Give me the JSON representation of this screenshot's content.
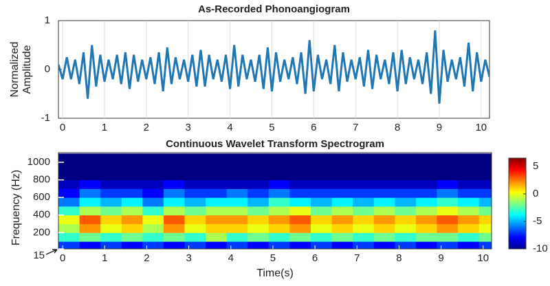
{
  "chart_data": [
    {
      "type": "line",
      "title": "As-Recorded Phonoangiogram",
      "ylabel": [
        "Normalized",
        "Amplitude"
      ],
      "color": "#1f77b4",
      "xlim": [
        -0.1,
        10.2
      ],
      "ylim": [
        -1,
        1
      ],
      "xticks": [
        0,
        1,
        2,
        3,
        4,
        5,
        6,
        7,
        8,
        9,
        10
      ],
      "yticks": [
        -1,
        0,
        1
      ],
      "grid": true,
      "x": [
        -0.1,
        0,
        0.1,
        0.2,
        0.3,
        0.4,
        0.5,
        0.6,
        0.7,
        0.8,
        0.9,
        1,
        1.1,
        1.2,
        1.3,
        1.4,
        1.5,
        1.6,
        1.7,
        1.8,
        1.9,
        2,
        2.1,
        2.2,
        2.3,
        2.4,
        2.5,
        2.6,
        2.7,
        2.8,
        2.9,
        3,
        3.1,
        3.2,
        3.3,
        3.4,
        3.5,
        3.6,
        3.7,
        3.8,
        3.9,
        4,
        4.1,
        4.2,
        4.3,
        4.4,
        4.5,
        4.6,
        4.7,
        4.8,
        4.9,
        5,
        5.1,
        5.2,
        5.3,
        5.4,
        5.5,
        5.6,
        5.7,
        5.8,
        5.9,
        6,
        6.1,
        6.2,
        6.3,
        6.4,
        6.5,
        6.6,
        6.7,
        6.8,
        6.9,
        7,
        7.1,
        7.2,
        7.3,
        7.4,
        7.5,
        7.6,
        7.7,
        7.8,
        7.9,
        8,
        8.1,
        8.2,
        8.3,
        8.4,
        8.5,
        8.6,
        8.7,
        8.8,
        8.9,
        9,
        9.1,
        9.2,
        9.3,
        9.4,
        9.5,
        9.6,
        9.7,
        9.8,
        9.9,
        10,
        10.1,
        10.2
      ],
      "values": [
        0.1,
        -0.2,
        0.25,
        -0.2,
        0.2,
        -0.3,
        0.35,
        -0.6,
        0.5,
        -0.35,
        0.3,
        -0.25,
        0.2,
        -0.2,
        0.3,
        -0.3,
        0.35,
        -0.4,
        0.3,
        -0.25,
        0.2,
        -0.2,
        0.25,
        -0.3,
        0.35,
        -0.45,
        0.45,
        -0.3,
        0.25,
        -0.2,
        0.2,
        -0.25,
        0.3,
        -0.35,
        0.4,
        -0.35,
        0.3,
        -0.2,
        0.2,
        -0.25,
        0.3,
        -0.4,
        0.5,
        -0.35,
        0.3,
        -0.2,
        0.2,
        -0.25,
        0.3,
        -0.4,
        0.45,
        -0.45,
        0.35,
        -0.25,
        0.2,
        -0.2,
        0.25,
        -0.3,
        0.35,
        -0.5,
        0.6,
        -0.45,
        0.3,
        -0.2,
        0.2,
        -0.3,
        0.5,
        -0.45,
        0.35,
        -0.25,
        0.2,
        -0.2,
        0.25,
        -0.35,
        0.4,
        -0.4,
        0.3,
        -0.2,
        0.2,
        -0.3,
        0.35,
        -0.45,
        0.4,
        -0.3,
        0.25,
        -0.2,
        0.2,
        -0.3,
        0.35,
        -0.5,
        0.8,
        -0.7,
        0.4,
        -0.25,
        0.2,
        -0.2,
        0.25,
        -0.35,
        0.55,
        -0.45,
        0.35,
        -0.25,
        0.2,
        -0.15
      ]
    },
    {
      "type": "heatmap",
      "title": "Continuous Wavelet Transform Spectrogram",
      "xlabel": "Time(s)",
      "ylabel": "Frequency (Hz)",
      "xlim": [
        -0.1,
        10.2
      ],
      "ylim": [
        15,
        1110
      ],
      "xticks": [
        0,
        1,
        2,
        3,
        4,
        5,
        6,
        7,
        8,
        9,
        10
      ],
      "yticks": [
        15,
        200,
        400,
        600,
        800,
        1000
      ],
      "clim": [
        -10,
        6.5
      ],
      "cticks": [
        5,
        0,
        -5,
        -10
      ],
      "colormap": "jet",
      "x": [
        0.15,
        0.65,
        1.15,
        1.65,
        2.15,
        2.65,
        3.15,
        3.65,
        4.15,
        4.65,
        5.15,
        5.65,
        6.15,
        6.65,
        7.15,
        7.65,
        8.15,
        8.65,
        9.15,
        9.65,
        10.15
      ],
      "y": [
        50,
        150,
        250,
        350,
        450,
        550,
        650,
        750,
        850,
        950,
        1050
      ],
      "values": [
        [
          -7,
          -8,
          -7,
          -8,
          -7,
          -8,
          -7,
          -8,
          -7,
          -8,
          -7,
          -8,
          -7,
          -8,
          -7,
          -8,
          -7,
          -8,
          -7,
          -8,
          -7
        ],
        [
          -3,
          -2,
          -3,
          -2,
          -3,
          -2,
          -3,
          -1,
          -3,
          -2,
          -3,
          -2,
          -3,
          -2,
          -3,
          -2,
          -3,
          -2,
          -2,
          -3,
          -2
        ],
        [
          -1,
          2,
          0,
          1,
          -1,
          2,
          0,
          1,
          1,
          0,
          1,
          2,
          0,
          1,
          0,
          1,
          0,
          1,
          2,
          1,
          0
        ],
        [
          0,
          3,
          1,
          2,
          0,
          3,
          1,
          2,
          2,
          1,
          2,
          3,
          1,
          2,
          1,
          2,
          1,
          2,
          3,
          2,
          1
        ],
        [
          -3,
          -1,
          -2,
          -1,
          -3,
          -1,
          -2,
          -1,
          -1,
          -2,
          -1,
          0,
          -2,
          -1,
          -2,
          -1,
          -2,
          -1,
          0,
          -1,
          -2
        ],
        [
          -6,
          -4,
          -5,
          -4,
          -6,
          -4,
          -5,
          -4,
          -4,
          -5,
          -3,
          -4,
          -5,
          -4,
          -5,
          -4,
          -5,
          -4,
          -3,
          -4,
          -5
        ],
        [
          -8,
          -6,
          -7,
          -7,
          -8,
          -6,
          -7,
          -7,
          -6,
          -7,
          -6,
          -7,
          -7,
          -7,
          -7,
          -7,
          -7,
          -7,
          -6,
          -7,
          -7
        ],
        [
          -9,
          -8,
          -9,
          -9,
          -9,
          -8,
          -9,
          -9,
          -9,
          -9,
          -8,
          -9,
          -9,
          -9,
          -9,
          -9,
          -9,
          -9,
          -8,
          -9,
          -9
        ],
        [
          -10,
          -10,
          -10,
          -10,
          -10,
          -10,
          -10,
          -10,
          -10,
          -10,
          -10,
          -10,
          -10,
          -10,
          -10,
          -10,
          -10,
          -10,
          -10,
          -10,
          -10
        ],
        [
          -10,
          -10,
          -10,
          -10,
          -10,
          -10,
          -10,
          -10,
          -10,
          -10,
          -10,
          -10,
          -10,
          -10,
          -10,
          -10,
          -10,
          -10,
          -10,
          -10,
          -10
        ],
        [
          -10,
          -10,
          -10,
          -10,
          -10,
          -10,
          -10,
          -10,
          -10,
          -10,
          -10,
          -10,
          -10,
          -10,
          -10,
          -10,
          -10,
          -10,
          -10,
          -10,
          -10
        ]
      ]
    }
  ]
}
